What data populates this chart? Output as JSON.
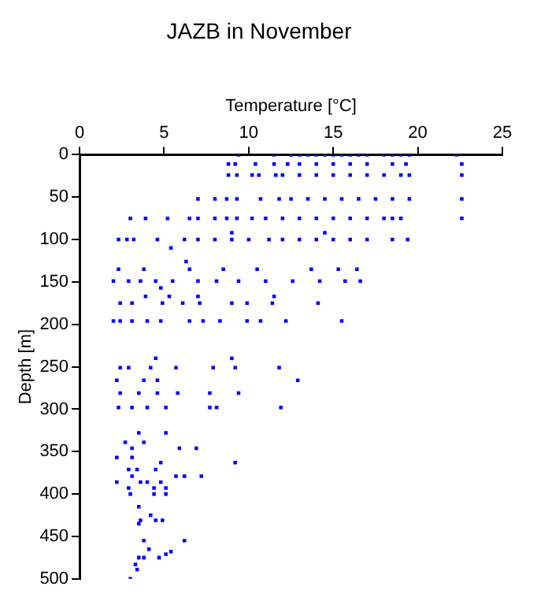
{
  "chart_data": {
    "type": "scatter",
    "title": "JAZB in November",
    "xlabel": "Temperature [°C]",
    "ylabel": "Depth [m]",
    "x": [
      9.4,
      11.5,
      12.5,
      13,
      13.5,
      14,
      14.5,
      15,
      15.5,
      16,
      16.5,
      17,
      18,
      18.5,
      19,
      19.5,
      22.3,
      8.8,
      9.2,
      10.4,
      11.5,
      12.3,
      13,
      14,
      15,
      16,
      17,
      18.5,
      19.3,
      22.6,
      8.8,
      9.3,
      10.2,
      10.6,
      11.6,
      12,
      13,
      14,
      15,
      16,
      17,
      18,
      19,
      19.5,
      22.6,
      7,
      8,
      8.7,
      9.3,
      10.7,
      11.8,
      12.5,
      13.5,
      14.5,
      15.5,
      16.5,
      17.5,
      18.5,
      19.5,
      22.6,
      3,
      3.9,
      5.2,
      6.5,
      7,
      8,
      8.7,
      9.3,
      10.2,
      11,
      12,
      13,
      14,
      15,
      16,
      17,
      18,
      18.5,
      19,
      22.6,
      2.3,
      2.8,
      3.2,
      4.6,
      6.2,
      7,
      8,
      9,
      10,
      11.2,
      12,
      13,
      14,
      15,
      16,
      17,
      18.5,
      19.4,
      5.4,
      9,
      14.5,
      6.3,
      2.3,
      3.8,
      6.5,
      8.5,
      10.5,
      13.7,
      15.3,
      16.4,
      2,
      2.9,
      3.6,
      4.5,
      5.5,
      7,
      8.1,
      9.4,
      11,
      12.6,
      14.2,
      15.7,
      16.6,
      3.9,
      5.3,
      7,
      11.5,
      4.8,
      2.4,
      3.1,
      4.9,
      6.1,
      7.1,
      9,
      9.9,
      11.4,
      14.1,
      2,
      2.4,
      3.1,
      4,
      4.8,
      6.5,
      7.3,
      8.3,
      9.9,
      10.7,
      12.2,
      15.5,
      4.5,
      9,
      2.4,
      2.9,
      4.2,
      5.7,
      7.9,
      9.2,
      11.8,
      2.2,
      3.8,
      4.6,
      12.9,
      2.4,
      3.5,
      4.6,
      5.8,
      7.7,
      9.4,
      2.3,
      3.1,
      4,
      5.1,
      7.7,
      8.1,
      11.9,
      5.1,
      3.5,
      2.7,
      3.8,
      5.9,
      6.9,
      3.1,
      2.2,
      3.1,
      4.8,
      9.2,
      2.9,
      4.5,
      3.4,
      3.1,
      6.2,
      7.2,
      5.7,
      2.2,
      3.6,
      4.8,
      4,
      2.9,
      4.4,
      5.1,
      3,
      4.4,
      5.1,
      3.5,
      4.2,
      3.6,
      4.5,
      4.9,
      3.5,
      3.8,
      6.2,
      4.1,
      5.4,
      5.1,
      3.5,
      3.8,
      4.7,
      3.3,
      3.4,
      3
    ],
    "values": [
      0,
      0,
      0,
      0,
      0,
      0,
      0,
      0,
      0,
      0,
      0,
      0,
      0,
      0,
      0,
      0,
      0,
      11,
      11,
      11,
      11,
      11,
      11,
      11,
      11,
      11,
      11,
      11,
      11,
      11,
      24,
      24,
      24,
      24,
      24,
      24,
      24,
      24,
      24,
      24,
      24,
      24,
      24,
      24,
      24,
      52,
      52,
      52,
      52,
      52,
      52,
      52,
      52,
      52,
      52,
      52,
      52,
      52,
      52,
      52,
      75,
      75,
      75,
      75,
      75,
      75,
      75,
      75,
      75,
      75,
      75,
      75,
      75,
      75,
      75,
      75,
      75,
      75,
      75,
      75,
      100,
      100,
      100,
      100,
      100,
      100,
      100,
      100,
      100,
      100,
      100,
      100,
      100,
      100,
      100,
      100,
      100,
      100,
      110,
      92,
      92,
      126,
      135,
      135,
      135,
      135,
      135,
      135,
      135,
      135,
      149,
      149,
      149,
      149,
      149,
      149,
      149,
      149,
      149,
      149,
      149,
      149,
      149,
      167,
      167,
      167,
      167,
      157,
      175,
      175,
      175,
      175,
      175,
      175,
      175,
      175,
      175,
      196,
      196,
      196,
      196,
      196,
      196,
      196,
      196,
      196,
      196,
      196,
      196,
      240,
      240,
      251,
      251,
      251,
      251,
      251,
      251,
      251,
      266,
      266,
      266,
      266,
      281,
      281,
      281,
      281,
      281,
      281,
      298,
      298,
      298,
      298,
      298,
      298,
      298,
      328,
      328,
      339,
      339,
      346,
      346,
      346,
      357,
      357,
      363,
      363,
      371,
      371,
      371,
      379,
      379,
      379,
      379,
      386,
      386,
      386,
      386,
      393,
      393,
      393,
      400,
      400,
      400,
      415,
      425,
      431,
      431,
      431,
      435,
      455,
      455,
      465,
      468,
      471,
      475,
      475,
      475,
      483,
      489,
      500
    ],
    "color": "#0000ff",
    "marker": "square",
    "grid": false,
    "legend": false,
    "xlim": [
      0,
      25
    ],
    "xticks": [
      0,
      5,
      10,
      15,
      20,
      25
    ],
    "ylim": [
      500,
      0
    ],
    "yticks": [
      0,
      50,
      100,
      150,
      200,
      250,
      300,
      350,
      400,
      450,
      500
    ]
  }
}
